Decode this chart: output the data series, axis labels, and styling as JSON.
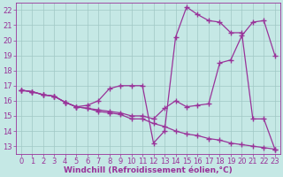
{
  "xlabel": "Windchill (Refroidissement éolien,°C)",
  "xlim": [
    -0.5,
    23.5
  ],
  "ylim": [
    12.5,
    22.5
  ],
  "xticks": [
    0,
    1,
    2,
    3,
    4,
    5,
    6,
    7,
    8,
    9,
    10,
    11,
    12,
    13,
    14,
    15,
    16,
    17,
    18,
    19,
    20,
    21,
    22,
    23
  ],
  "yticks": [
    13,
    14,
    15,
    16,
    17,
    18,
    19,
    20,
    21,
    22
  ],
  "background_color": "#c5e8e5",
  "grid_color": "#a0c8c5",
  "line_color": "#993399",
  "line1_x": [
    0,
    1,
    2,
    3,
    4,
    5,
    6,
    7,
    8,
    9,
    10,
    11,
    12,
    13,
    14,
    15,
    16,
    17,
    18,
    19,
    20,
    21,
    22,
    23
  ],
  "line1_y": [
    16.7,
    16.6,
    16.4,
    16.3,
    15.9,
    15.6,
    15.7,
    16.0,
    16.8,
    17.0,
    17.0,
    17.0,
    13.2,
    14.0,
    20.2,
    22.2,
    21.7,
    21.3,
    21.2,
    20.5,
    20.5,
    14.8,
    14.8,
    12.8
  ],
  "line2_x": [
    0,
    1,
    2,
    3,
    4,
    5,
    6,
    7,
    8,
    9,
    10,
    11,
    12,
    13,
    14,
    15,
    16,
    17,
    18,
    19,
    20,
    21,
    22,
    23
  ],
  "line2_y": [
    16.7,
    16.6,
    16.4,
    16.3,
    15.9,
    15.6,
    15.5,
    15.3,
    15.2,
    15.1,
    14.8,
    14.8,
    14.5,
    14.3,
    14.0,
    13.8,
    13.7,
    13.5,
    13.4,
    13.2,
    13.1,
    13.0,
    12.9,
    12.8
  ],
  "line3_x": [
    0,
    1,
    2,
    3,
    4,
    5,
    6,
    7,
    8,
    9,
    10,
    11,
    12,
    13,
    14,
    15,
    16,
    17,
    18,
    19,
    20,
    21,
    22,
    23
  ],
  "line3_y": [
    16.7,
    16.6,
    16.4,
    16.3,
    15.9,
    15.6,
    15.5,
    15.4,
    15.3,
    15.2,
    15.0,
    15.0,
    14.8,
    15.5,
    16.0,
    15.6,
    15.7,
    15.8,
    18.5,
    18.7,
    20.3,
    21.2,
    21.3,
    19.0
  ],
  "marker": "+",
  "marker_size": 4,
  "linewidth": 0.9,
  "font_size_ticks": 6,
  "font_size_xlabel": 6.5
}
